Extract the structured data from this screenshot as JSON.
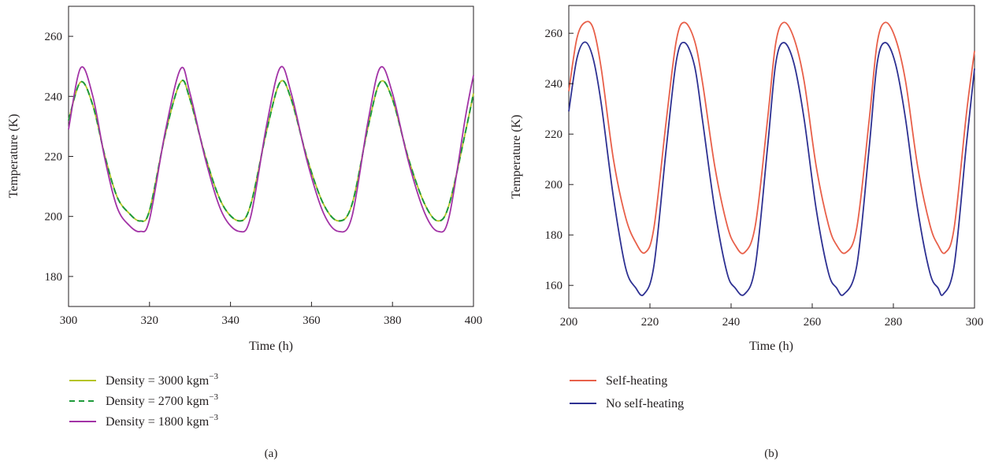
{
  "chart_data": [
    {
      "type": "line",
      "panel_label": "(a)",
      "xlabel": "Time (h)",
      "ylabel": "Temperature (K)",
      "xlim": [
        300,
        400
      ],
      "ylim": [
        170,
        270
      ],
      "xticks": [
        300,
        320,
        340,
        360,
        380,
        400
      ],
      "yticks": [
        180,
        200,
        220,
        240,
        260
      ],
      "grid": false,
      "legend_position": "below",
      "series": [
        {
          "name": "Density = 3000 kgm",
          "name_sup": "−3",
          "color": "#b5c427",
          "dash": "solid",
          "x": [
            300,
            303,
            306,
            309,
            312,
            315,
            317.7,
            320,
            324,
            327.7,
            330,
            334,
            338,
            342.2,
            345,
            349,
            352.3,
            355,
            359,
            363,
            366.7,
            370,
            374,
            377,
            380,
            384,
            388,
            391.3,
            394,
            398,
            400
          ],
          "y": [
            232,
            244.8,
            237,
            220,
            206.5,
            201,
            198.5,
            202,
            228,
            244.8,
            239,
            219,
            204,
            198.5,
            204,
            229,
            244.8,
            239,
            219,
            204,
            198.5,
            204,
            230,
            244.8,
            239,
            219,
            204,
            198.5,
            204,
            228,
            241
          ]
        },
        {
          "name": "Density = 2700 kgm",
          "name_sup": "−3",
          "color": "#1e9a3a",
          "dash": "dashed",
          "x": [
            300,
            303,
            306,
            309,
            312,
            315,
            317.7,
            320,
            324,
            327.7,
            330,
            334,
            338,
            342.2,
            345,
            349,
            352.3,
            355,
            359,
            363,
            366.7,
            370,
            374,
            377,
            380,
            384,
            388,
            391.3,
            394,
            398,
            400
          ],
          "y": [
            232,
            244.8,
            237,
            220,
            206.5,
            201,
            198.5,
            202,
            228,
            244.8,
            239,
            219,
            204,
            198.5,
            204,
            229,
            244.8,
            239,
            219,
            204,
            198.5,
            204,
            230,
            244.8,
            239,
            219,
            204,
            198.5,
            204,
            228,
            241
          ]
        },
        {
          "name": "Density = 1800 kgm",
          "name_sup": "−3",
          "color": "#a233a6",
          "dash": "solid",
          "x": [
            300,
            303,
            306,
            309,
            312,
            315,
            317.7,
            320,
            324,
            327.7,
            330,
            334,
            338,
            342.2,
            345,
            349,
            352.3,
            355,
            359,
            363,
            366.7,
            370,
            374,
            377,
            380,
            384,
            388,
            391.3,
            394,
            398,
            400
          ],
          "y": [
            229,
            249.5,
            240,
            219,
            203,
            197,
            195,
            199,
            229,
            249.2,
            241,
            218,
            201,
            195,
            200,
            231,
            249.6,
            241,
            218,
            201,
            195,
            200,
            232,
            249.6,
            241,
            218,
            201,
            195,
            200,
            233,
            247
          ]
        }
      ]
    },
    {
      "type": "line",
      "panel_label": "(b)",
      "xlabel": "Time (h)",
      "ylabel": "Temperature (K)",
      "xlim": [
        200,
        300
      ],
      "ylim": [
        151,
        271
      ],
      "xticks": [
        200,
        220,
        240,
        260,
        280,
        300
      ],
      "yticks": [
        160,
        180,
        200,
        220,
        240,
        260
      ],
      "grid": false,
      "legend_position": "below",
      "series": [
        {
          "name": "Self-heating",
          "name_sup": "",
          "color": "#e8604a",
          "dash": "solid",
          "x": [
            200,
            202,
            204,
            206,
            208,
            211,
            214,
            216.5,
            218.8,
            221,
            224,
            226.5,
            228.5,
            231,
            233,
            236,
            239,
            241,
            243.3,
            246,
            249,
            251,
            253,
            255.5,
            258,
            261,
            264,
            266,
            268.3,
            271,
            274,
            276,
            278,
            280.5,
            283,
            286,
            289,
            291,
            292.8,
            295,
            298,
            300
          ],
          "y": [
            237,
            258,
            264.3,
            262,
            246,
            210,
            187,
            177,
            173,
            183,
            225,
            257,
            264.3,
            257,
            240,
            207,
            184,
            176,
            173,
            184,
            226,
            256,
            264.3,
            258,
            241,
            207,
            184,
            176,
            173,
            183,
            225,
            256,
            264.3,
            258,
            241,
            207,
            184,
            176,
            173,
            183,
            228,
            253
          ]
        },
        {
          "name": "No self-heating",
          "name_sup": "",
          "color": "#2e3192",
          "dash": "solid",
          "x": [
            200,
            202,
            204,
            206,
            208,
            211,
            214,
            216.5,
            218.5,
            221,
            224,
            226.5,
            228.5,
            231,
            233,
            236,
            239,
            241,
            243.3,
            246,
            249,
            251,
            253,
            255.5,
            258,
            261,
            264,
            266,
            267.8,
            271,
            274,
            276,
            278,
            280.5,
            283,
            286,
            289,
            291,
            292.3,
            295,
            298,
            300
          ],
          "y": [
            229,
            250,
            256.5,
            250,
            232,
            195,
            167,
            159,
            156.5,
            168,
            214,
            249,
            256.3,
            247,
            225,
            190,
            165,
            159,
            156.5,
            168,
            215,
            248,
            256.3,
            248,
            226,
            190,
            165,
            159,
            156.5,
            168,
            214,
            248,
            256.3,
            248,
            226,
            190,
            165,
            159,
            156.5,
            168,
            216,
            246
          ]
        }
      ]
    }
  ]
}
